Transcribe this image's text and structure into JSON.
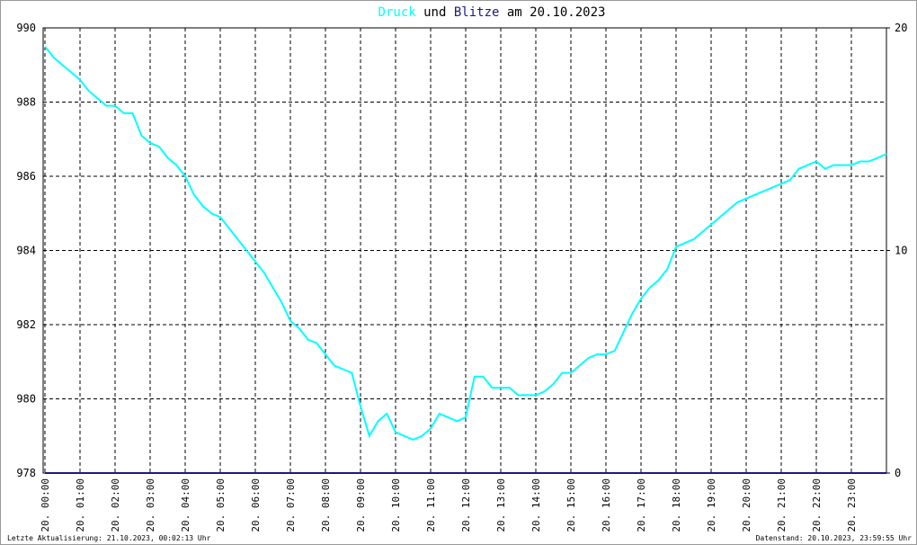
{
  "chart_data": {
    "type": "line",
    "title_connector": "und",
    "title_date": "am 20.10.2023",
    "footer_left": "Letzte Aktualisierung: 21.10.2023, 00:02:13 Uhr",
    "footer_right": "Datenstand: 20.10.2023, 23:59:55 Uhr",
    "grid": true,
    "xlim": [
      0,
      24
    ],
    "ylim": [
      978,
      990
    ],
    "yticks": [
      978,
      980,
      982,
      984,
      986,
      988,
      990
    ],
    "y2lim": [
      0,
      20
    ],
    "y2ticks": [
      0,
      10,
      20
    ],
    "xticks": [
      {
        "value": 0,
        "label": "20. 00:00"
      },
      {
        "value": 1,
        "label": "20. 01:00"
      },
      {
        "value": 2,
        "label": "20. 02:00"
      },
      {
        "value": 3,
        "label": "20. 03:00"
      },
      {
        "value": 4,
        "label": "20. 04:00"
      },
      {
        "value": 5,
        "label": "20. 05:00"
      },
      {
        "value": 6,
        "label": "20. 06:00"
      },
      {
        "value": 7,
        "label": "20. 07:00"
      },
      {
        "value": 8,
        "label": "20. 08:00"
      },
      {
        "value": 9,
        "label": "20. 09:00"
      },
      {
        "value": 10,
        "label": "20. 10:00"
      },
      {
        "value": 11,
        "label": "20. 11:00"
      },
      {
        "value": 12,
        "label": "20. 12:00"
      },
      {
        "value": 13,
        "label": "20. 13:00"
      },
      {
        "value": 14,
        "label": "20. 14:00"
      },
      {
        "value": 15,
        "label": "20. 15:00"
      },
      {
        "value": 16,
        "label": "20. 16:00"
      },
      {
        "value": 17,
        "label": "20. 17:00"
      },
      {
        "value": 18,
        "label": "20. 18:00"
      },
      {
        "value": 19,
        "label": "20. 19:00"
      },
      {
        "value": 20,
        "label": "20. 20:00"
      },
      {
        "value": 21,
        "label": "20. 21:00"
      },
      {
        "value": 22,
        "label": "20. 22:00"
      },
      {
        "value": 23,
        "label": "20. 23:00"
      }
    ],
    "x": [
      0,
      0.25,
      0.5,
      0.75,
      1,
      1.25,
      1.5,
      1.75,
      2,
      2.25,
      2.5,
      2.75,
      3,
      3.25,
      3.5,
      3.75,
      4,
      4.25,
      4.5,
      4.75,
      5,
      5.25,
      5.5,
      5.75,
      6,
      6.25,
      6.5,
      6.75,
      7,
      7.25,
      7.5,
      7.75,
      8,
      8.25,
      8.5,
      8.75,
      9,
      9.25,
      9.5,
      9.75,
      10,
      10.25,
      10.5,
      10.75,
      11,
      11.25,
      11.5,
      11.75,
      12,
      12.25,
      12.5,
      12.75,
      13,
      13.25,
      13.5,
      13.75,
      14,
      14.25,
      14.5,
      14.75,
      15,
      15.25,
      15.5,
      15.75,
      16,
      16.25,
      16.5,
      16.75,
      17,
      17.25,
      17.5,
      17.75,
      18,
      18.25,
      18.5,
      18.75,
      19,
      19.25,
      19.5,
      19.75,
      20,
      20.25,
      20.5,
      20.75,
      21,
      21.25,
      21.5,
      21.75,
      22,
      22.25,
      22.5,
      22.75,
      23,
      23.25,
      23.5,
      23.75,
      24
    ],
    "series": [
      {
        "name": "Druck",
        "color": "#00ffff",
        "values": [
          989.5,
          989.2,
          989.0,
          988.8,
          988.6,
          988.3,
          988.1,
          987.9,
          987.9,
          987.7,
          987.7,
          987.1,
          986.9,
          986.8,
          986.5,
          986.3,
          986.0,
          985.5,
          985.2,
          985.0,
          984.9,
          984.6,
          984.3,
          984.0,
          983.7,
          983.4,
          983.0,
          982.6,
          982.1,
          981.9,
          981.6,
          981.5,
          981.2,
          980.9,
          980.8,
          980.7,
          979.8,
          979.0,
          979.4,
          979.6,
          979.1,
          979.0,
          978.9,
          979.0,
          979.2,
          979.6,
          979.5,
          979.4,
          979.5,
          980.6,
          980.6,
          980.3,
          980.3,
          980.3,
          980.1,
          980.1,
          980.1,
          980.2,
          980.4,
          980.7,
          980.7,
          980.9,
          981.1,
          981.2,
          981.2,
          981.3,
          981.8,
          982.3,
          982.7,
          983.0,
          983.2,
          983.5,
          984.1,
          984.2,
          984.3,
          984.5,
          984.7,
          984.9,
          985.1,
          985.3,
          985.4,
          985.5,
          985.6,
          985.7,
          985.8,
          985.9,
          986.2,
          986.3,
          986.4,
          986.2,
          986.3,
          986.3,
          986.3,
          986.4,
          986.4,
          986.5,
          986.6
        ]
      },
      {
        "name": "Blitze",
        "color": "#1a1a80",
        "axis": "y2",
        "values": [
          0,
          0,
          0,
          0,
          0,
          0,
          0,
          0,
          0,
          0,
          0,
          0,
          0,
          0,
          0,
          0,
          0,
          0,
          0,
          0,
          0,
          0,
          0,
          0,
          0,
          0,
          0,
          0,
          0,
          0,
          0,
          0,
          0,
          0,
          0,
          0,
          0,
          0,
          0,
          0,
          0,
          0,
          0,
          0,
          0,
          0,
          0,
          0,
          0,
          0,
          0,
          0,
          0,
          0,
          0,
          0,
          0,
          0,
          0,
          0,
          0,
          0,
          0,
          0,
          0,
          0,
          0,
          0,
          0,
          0,
          0,
          0,
          0,
          0,
          0,
          0,
          0,
          0,
          0,
          0,
          0,
          0,
          0,
          0,
          0,
          0,
          0,
          0,
          0,
          0,
          0,
          0,
          0,
          0,
          0,
          0,
          0
        ]
      }
    ]
  }
}
